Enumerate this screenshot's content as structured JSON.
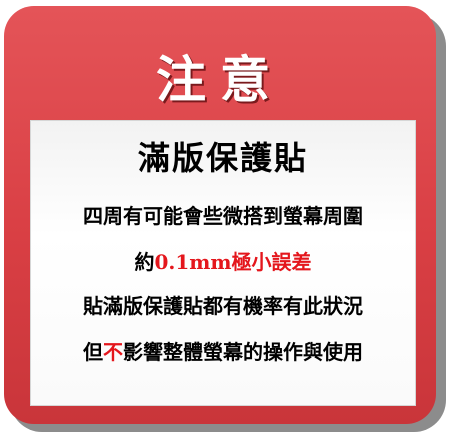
{
  "notice": {
    "title": "注意",
    "subtitle": "滿版保護貼",
    "line1": "四周有可能會些微搭到螢幕周圍",
    "line2": {
      "before": "約",
      "highlight": "0.1mm",
      "middle": "極小誤差"
    },
    "line3": "貼滿版保護貼都有機率有此狀況",
    "line4": {
      "before": "但",
      "highlight": "不",
      "after": "影響整體螢幕的操作與使用"
    }
  },
  "colors": {
    "frame": "#d93f44",
    "highlight": "#e4161c",
    "panel": "#ffffff"
  }
}
